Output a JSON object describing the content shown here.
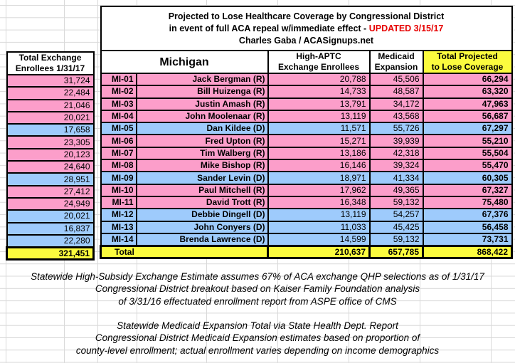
{
  "title": {
    "line1": "Projected to Lose Healthcare Coverage by Congressional District",
    "line2": "in event of full ACA repeal w/immediate effect -",
    "line2_highlight": "UPDATED 3/15/17",
    "line3": "Charles Gaba / ACASignups.net"
  },
  "headers": {
    "exchange_line1": "Total Exchange",
    "exchange_line2": "Enrollees 1/31/17",
    "state": "Michigan",
    "aptc_line1": "High-APTC",
    "aptc_line2": "Exchange Enrollees",
    "medicaid_line1": "Medicaid",
    "medicaid_line2": "Expansion",
    "total_line1": "Total Projected",
    "total_line2": "to Lose Coverage"
  },
  "chart_data": {
    "type": "table",
    "title": "Projected to Lose Healthcare Coverage by Congressional District in event of full ACA repeal w/immediate effect - UPDATED 3/15/17",
    "subtitle": "Charles Gaba / ACASignups.net",
    "state": "Michigan",
    "columns": [
      "Total Exchange Enrollees 1/31/17",
      "District",
      "Representative",
      "High-APTC Exchange Enrollees",
      "Medicaid Expansion",
      "Total Projected to Lose Coverage"
    ],
    "rows": [
      {
        "district": "MI-01",
        "rep": "Jack Bergman (R)",
        "party": "R",
        "exchange_enrollees": "31,724",
        "high_aptc": "20,788",
        "medicaid_expansion": "45,506",
        "total_projected": "66,294"
      },
      {
        "district": "MI-02",
        "rep": "Bill Huizenga (R)",
        "party": "R",
        "exchange_enrollees": "22,484",
        "high_aptc": "14,733",
        "medicaid_expansion": "48,587",
        "total_projected": "63,320"
      },
      {
        "district": "MI-03",
        "rep": "Justin Amash (R)",
        "party": "R",
        "exchange_enrollees": "21,046",
        "high_aptc": "13,791",
        "medicaid_expansion": "34,172",
        "total_projected": "47,963"
      },
      {
        "district": "MI-04",
        "rep": "John Moolenaar (R)",
        "party": "R",
        "exchange_enrollees": "20,021",
        "high_aptc": "13,119",
        "medicaid_expansion": "43,568",
        "total_projected": "56,687"
      },
      {
        "district": "MI-05",
        "rep": "Dan Kildee (D)",
        "party": "D",
        "exchange_enrollees": "17,658",
        "high_aptc": "11,571",
        "medicaid_expansion": "55,726",
        "total_projected": "67,297"
      },
      {
        "district": "MI-06",
        "rep": "Fred Upton (R)",
        "party": "R",
        "exchange_enrollees": "23,305",
        "high_aptc": "15,271",
        "medicaid_expansion": "39,939",
        "total_projected": "55,210"
      },
      {
        "district": "MI-07",
        "rep": "Tim Walberg (R)",
        "party": "R",
        "exchange_enrollees": "20,123",
        "high_aptc": "13,186",
        "medicaid_expansion": "42,318",
        "total_projected": "55,504"
      },
      {
        "district": "MI-08",
        "rep": "Mike Bishop (R)",
        "party": "R",
        "exchange_enrollees": "24,640",
        "high_aptc": "16,146",
        "medicaid_expansion": "39,324",
        "total_projected": "55,470"
      },
      {
        "district": "MI-09",
        "rep": "Sander Levin (D)",
        "party": "D",
        "exchange_enrollees": "28,951",
        "high_aptc": "18,971",
        "medicaid_expansion": "41,334",
        "total_projected": "60,305"
      },
      {
        "district": "MI-10",
        "rep": "Paul Mitchell (R)",
        "party": "R",
        "exchange_enrollees": "27,412",
        "high_aptc": "17,962",
        "medicaid_expansion": "49,365",
        "total_projected": "67,327"
      },
      {
        "district": "MI-11",
        "rep": "David Trott (R)",
        "party": "R",
        "exchange_enrollees": "24,949",
        "high_aptc": "16,348",
        "medicaid_expansion": "59,132",
        "total_projected": "75,480"
      },
      {
        "district": "MI-12",
        "rep": "Debbie Dingell (D)",
        "party": "D",
        "exchange_enrollees": "20,021",
        "high_aptc": "13,119",
        "medicaid_expansion": "54,257",
        "total_projected": "67,376"
      },
      {
        "district": "MI-13",
        "rep": "John Conyers (D)",
        "party": "D",
        "exchange_enrollees": "16,837",
        "high_aptc": "11,033",
        "medicaid_expansion": "45,425",
        "total_projected": "56,458"
      },
      {
        "district": "MI-14",
        "rep": "Brenda Lawrence (D)",
        "party": "D",
        "exchange_enrollees": "22,280",
        "high_aptc": "14,599",
        "medicaid_expansion": "59,132",
        "total_projected": "73,731"
      }
    ],
    "totals": {
      "label": "Total",
      "exchange_enrollees": "321,451",
      "high_aptc": "210,637",
      "medicaid_expansion": "657,785",
      "total_projected": "868,422"
    },
    "row_color_legend": {
      "R": "pink",
      "D": "blue"
    }
  },
  "footnotes": [
    "Statewide High-Subsidy Exchange Estimate assumes 67% of ACA exchange QHP selections as of 1/31/17",
    "Congressional District breakout based on Kaiser Family Foundation analysis",
    "of 3/31/16 effectuated enrollment report from ASPE office of CMS",
    "Statewide Medicaid Expansion Total via State Health Dept. Report",
    "Congressional District Medicaid Expansion estimates based on proportion of",
    "county-level enrollment; actual enrollment varies depending on income demographics"
  ],
  "colors": {
    "pink_republican": "#fc9eca",
    "blue_democrat": "#9ecbfc",
    "highlight_yellow": "#fbfb3e",
    "updated_red": "#e60000",
    "gridline_gray": "#d9d9d9"
  }
}
